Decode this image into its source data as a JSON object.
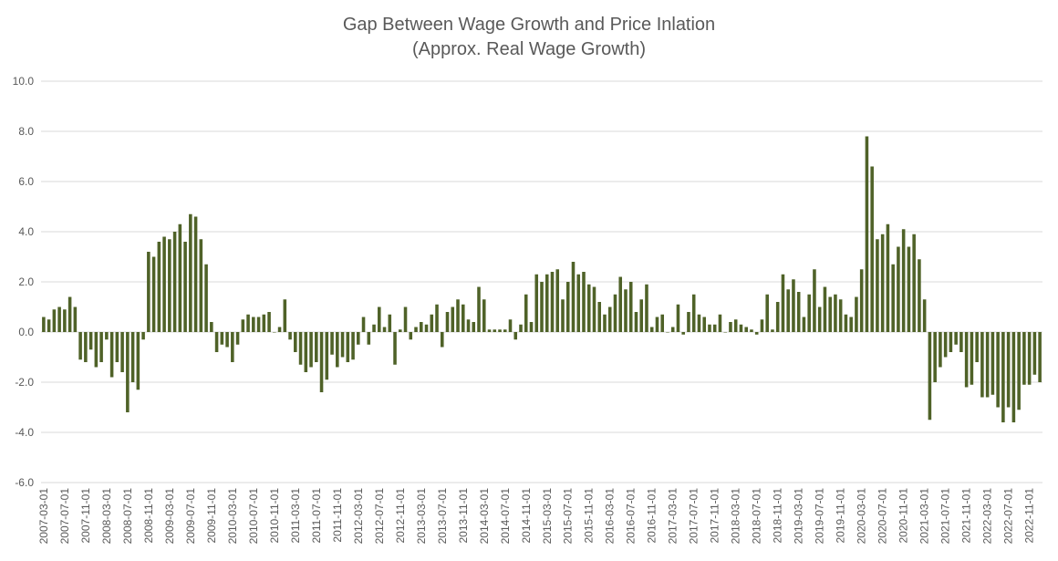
{
  "chart_data": {
    "type": "bar",
    "title": "Gap Between Wage Growth and Price Inlation",
    "subtitle": "(Approx. Real Wage Growth)",
    "xlabel": "",
    "ylabel": "",
    "ylim": [
      -6.0,
      10.0
    ],
    "yticks": [
      "10.0",
      "8.0",
      "6.0",
      "4.0",
      "2.0",
      "0.0",
      "-2.0",
      "-4.0",
      "-6.0"
    ],
    "grid": "horizontal",
    "bar_color": "#4f6228",
    "start_month": "2007-03",
    "x_tick_labels": [
      "2007-03-01",
      "2007-07-01",
      "2007-11-01",
      "2008-03-01",
      "2008-07-01",
      "2008-11-01",
      "2009-03-01",
      "2009-07-01",
      "2009-11-01",
      "2010-03-01",
      "2010-07-01",
      "2010-11-01",
      "2011-03-01",
      "2011-07-01",
      "2011-11-01",
      "2012-03-01",
      "2012-07-01",
      "2012-11-01",
      "2013-03-01",
      "2013-07-01",
      "2013-11-01",
      "2014-03-01",
      "2014-07-01",
      "2014-11-01",
      "2015-03-01",
      "2015-07-01",
      "2015-11-01",
      "2016-03-01",
      "2016-07-01",
      "2016-11-01",
      "2017-03-01",
      "2017-07-01",
      "2017-11-01",
      "2018-03-01",
      "2018-07-01",
      "2018-11-01",
      "2019-03-01",
      "2019-07-01",
      "2019-11-01",
      "2020-03-01",
      "2020-07-01",
      "2020-11-01",
      "2021-03-01",
      "2021-07-01",
      "2021-11-01",
      "2022-03-01",
      "2022-07-01",
      "2022-11-01"
    ],
    "values": [
      0.6,
      0.5,
      0.9,
      1.0,
      0.9,
      1.4,
      1.0,
      -1.1,
      -1.2,
      -0.7,
      -1.4,
      -1.2,
      -0.3,
      -1.8,
      -1.2,
      -1.6,
      -3.2,
      -2.0,
      -2.3,
      -0.3,
      3.2,
      3.0,
      3.6,
      3.8,
      3.7,
      4.0,
      4.3,
      3.6,
      4.7,
      4.6,
      3.7,
      2.7,
      0.4,
      -0.8,
      -0.5,
      -0.6,
      -1.2,
      -0.5,
      0.5,
      0.7,
      0.6,
      0.6,
      0.7,
      0.8,
      0.0,
      0.2,
      1.3,
      -0.3,
      -0.8,
      -1.3,
      -1.6,
      -1.4,
      -1.2,
      -2.4,
      -1.9,
      -0.9,
      -1.4,
      -1.0,
      -1.2,
      -1.1,
      -0.5,
      0.6,
      -0.5,
      0.3,
      1.0,
      0.2,
      0.7,
      -1.3,
      0.1,
      1.0,
      -0.3,
      0.2,
      0.4,
      0.3,
      0.7,
      1.1,
      -0.6,
      0.8,
      1.0,
      1.3,
      1.1,
      0.5,
      0.4,
      1.8,
      1.3,
      0.1,
      0.1,
      0.1,
      0.1,
      0.5,
      -0.3,
      0.3,
      1.5,
      0.4,
      2.3,
      2.0,
      2.3,
      2.4,
      2.5,
      1.3,
      2.0,
      2.8,
      2.3,
      2.4,
      1.9,
      1.8,
      1.2,
      0.7,
      1.0,
      1.5,
      2.2,
      1.7,
      2.0,
      0.8,
      1.3,
      1.9,
      0.2,
      0.6,
      0.7,
      0.0,
      0.2,
      1.1,
      -0.1,
      0.8,
      1.5,
      0.7,
      0.6,
      0.3,
      0.3,
      0.7,
      0.0,
      0.4,
      0.5,
      0.3,
      0.2,
      0.1,
      -0.1,
      0.5,
      1.5,
      0.1,
      1.2,
      2.3,
      1.7,
      2.1,
      1.6,
      0.6,
      1.5,
      2.5,
      1.0,
      1.8,
      1.4,
      1.5,
      1.3,
      0.7,
      0.6,
      1.4,
      2.5,
      7.8,
      6.6,
      3.7,
      3.9,
      4.3,
      2.7,
      3.4,
      4.1,
      3.4,
      3.9,
      2.9,
      1.3,
      -3.5,
      -2.0,
      -1.4,
      -1.0,
      -0.8,
      -0.5,
      -0.8,
      -2.2,
      -2.1,
      -1.2,
      -2.6,
      -2.6,
      -2.5,
      -3.0,
      -3.6,
      -3.0,
      -3.6,
      -3.1,
      -2.1,
      -2.1,
      -1.7,
      -2.0
    ]
  }
}
